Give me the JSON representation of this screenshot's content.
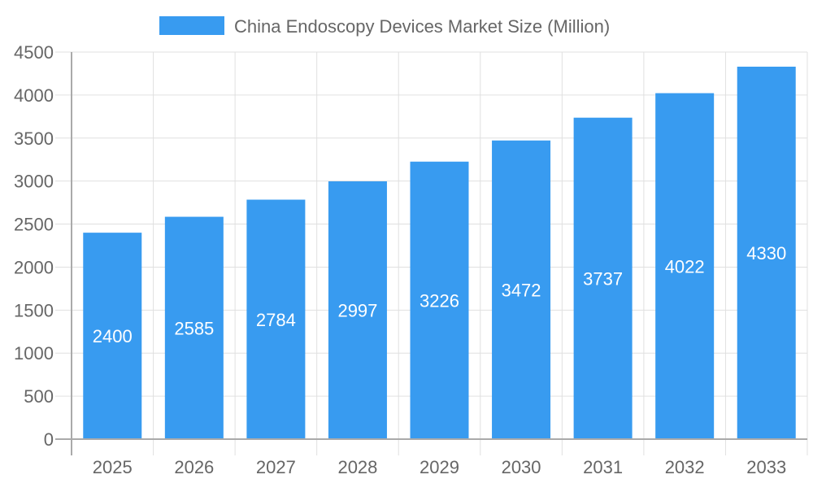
{
  "chart_data": {
    "type": "bar",
    "legend": {
      "label": "China Endoscopy Devices Market Size (Million)",
      "placement": "top"
    },
    "categories": [
      "2025",
      "2026",
      "2027",
      "2028",
      "2029",
      "2030",
      "2031",
      "2032",
      "2033"
    ],
    "series": [
      {
        "name": "China Endoscopy Devices Market Size (Million)",
        "values": [
          2400,
          2585,
          2784,
          2997,
          3226,
          3472,
          3737,
          4022,
          4330
        ]
      }
    ],
    "data_labels": [
      "2400",
      "2585",
      "2784",
      "2997",
      "3226",
      "3472",
      "3737",
      "4022",
      "4330"
    ],
    "ylim": [
      0,
      4500
    ],
    "yticks": [
      "0",
      "500",
      "1000",
      "1500",
      "2000",
      "2500",
      "3000",
      "3500",
      "4000",
      "4500"
    ],
    "grid": true,
    "colors": {
      "bar": "#389bf0",
      "grid": "#e0e0e0",
      "axis": "#aaaaaa",
      "text": "#666666",
      "label": "#ffffff"
    }
  }
}
